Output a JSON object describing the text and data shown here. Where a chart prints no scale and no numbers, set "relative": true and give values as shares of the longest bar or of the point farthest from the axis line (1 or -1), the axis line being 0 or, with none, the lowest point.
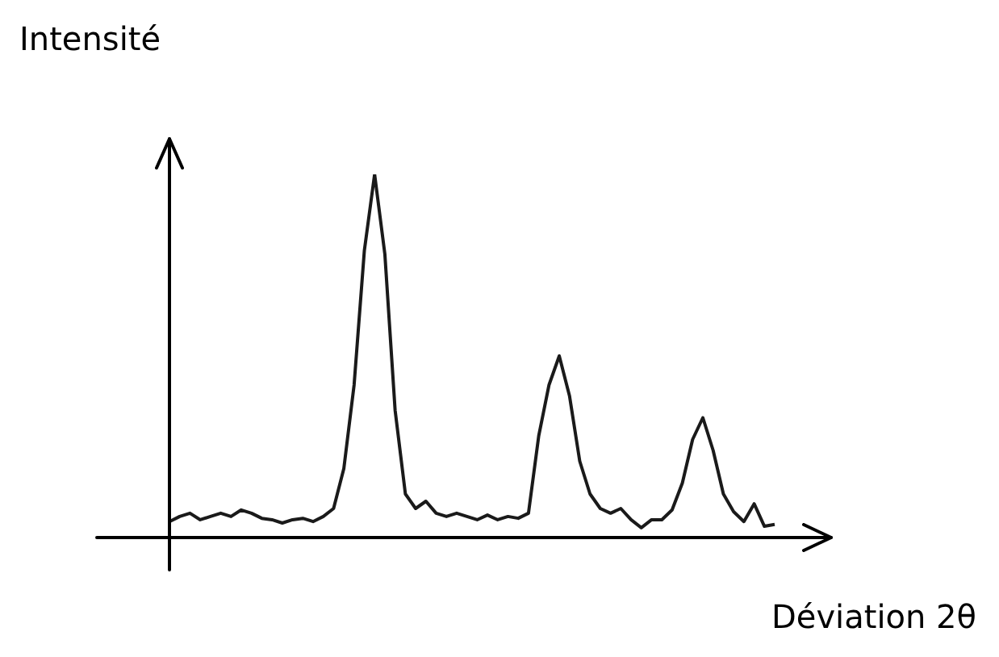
{
  "chart_data": {
    "type": "line",
    "relative": true,
    "xlabel": "Déviation 2θ",
    "ylabel": "Intensité",
    "marker": "none",
    "color": "#1a1a1a",
    "categories": [
      null,
      null,
      null,
      null,
      null,
      null,
      null,
      null,
      null,
      null,
      null,
      null,
      null,
      null,
      null,
      null,
      null,
      null,
      null,
      null,
      null,
      null,
      null,
      null,
      null,
      null,
      null,
      null,
      null,
      null,
      null,
      null,
      null,
      null,
      null,
      null,
      null,
      null,
      null,
      null,
      null,
      null,
      null,
      null,
      null,
      null,
      null,
      null,
      null,
      null,
      null,
      null,
      null,
      null,
      null,
      null,
      null,
      null,
      null,
      null
    ],
    "values": [
      0.044,
      0.058,
      0.067,
      0.049,
      0.058,
      0.067,
      0.058,
      0.076,
      0.067,
      0.053,
      0.049,
      0.04,
      0.049,
      0.053,
      0.044,
      0.058,
      0.08,
      0.19,
      0.42,
      0.79,
      1,
      0.78,
      0.35,
      0.12,
      0.08,
      0.1,
      0.067,
      0.058,
      0.067,
      0.058,
      0.049,
      0.062,
      0.049,
      0.058,
      0.053,
      0.067,
      0.28,
      0.42,
      0.5,
      0.39,
      0.21,
      0.12,
      0.08,
      0.067,
      0.08,
      0.049,
      0.027,
      0.049,
      0.049,
      0.076,
      0.15,
      0.27,
      0.33,
      0.24,
      0.12,
      0.071,
      0.044,
      0.093,
      0.031,
      0.036
    ]
  }
}
